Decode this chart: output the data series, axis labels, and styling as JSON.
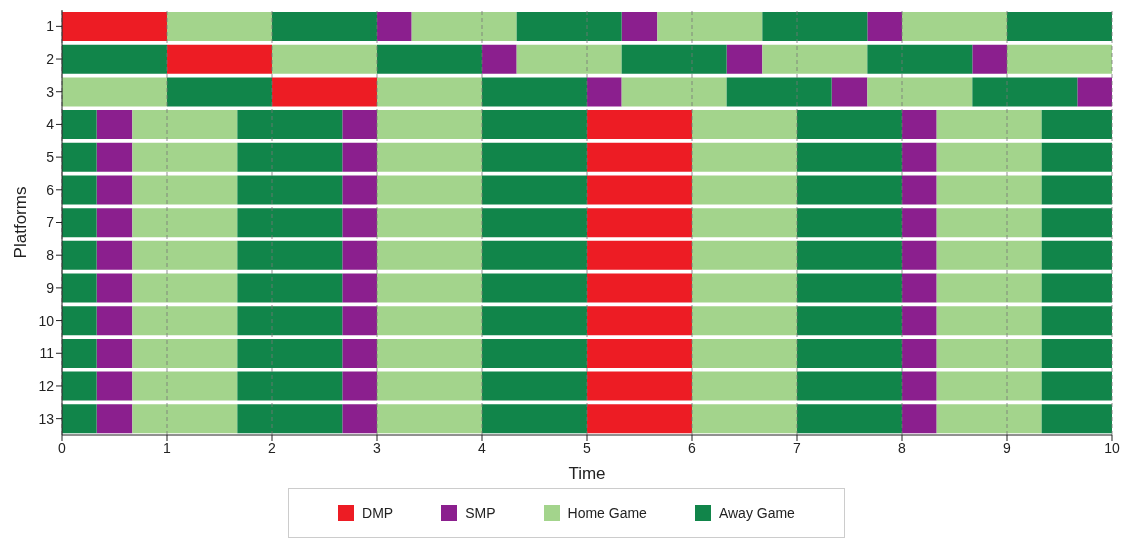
{
  "chart_data": {
    "type": "bar",
    "orientation": "horizontal",
    "xlabel": "Time",
    "ylabel": "Platforms",
    "categories": [
      "1",
      "2",
      "3",
      "4",
      "5",
      "6",
      "7",
      "8",
      "9",
      "10",
      "11",
      "12",
      "13"
    ],
    "xlim": [
      0,
      10
    ],
    "xticks": [
      0,
      1,
      2,
      3,
      4,
      5,
      6,
      7,
      8,
      9,
      10
    ],
    "grid": "x",
    "legend": "bottom",
    "series": [
      {
        "name": "DMP",
        "color": "#ed1c24",
        "base": [
          0,
          1,
          2,
          5,
          5,
          5,
          5,
          5,
          5,
          5,
          5,
          5,
          5
        ],
        "values": [
          1,
          1,
          1,
          1,
          1,
          1,
          1,
          1,
          1,
          1,
          1,
          1,
          1
        ]
      },
      {
        "name": "SMP",
        "color": "#8b1f8e",
        "base": [
          3,
          4,
          5,
          0.33,
          0.33,
          0.33,
          0.33,
          0.33,
          0.33,
          0.33,
          0.33,
          0.33,
          0.33
        ],
        "values": [
          0.33,
          0.33,
          0.33,
          0.34,
          0.34,
          0.34,
          0.34,
          0.34,
          0.34,
          0.34,
          0.34,
          0.34,
          0.34
        ]
      },
      {
        "color": "#8b1f8e",
        "base": [
          5.33,
          6.33,
          7.33,
          2.67,
          2.67,
          2.67,
          2.67,
          2.67,
          2.67,
          2.67,
          2.67,
          2.67,
          2.67
        ],
        "values": [
          0.34,
          0.34,
          0.34,
          0.33,
          0.33,
          0.33,
          0.33,
          0.33,
          0.33,
          0.33,
          0.33,
          0.33,
          0.33
        ]
      },
      {
        "color": "#8b1f8e",
        "base": [
          7.67,
          8.67,
          9.67,
          8,
          8,
          8,
          8,
          8,
          8,
          8,
          8,
          8,
          8
        ],
        "values": [
          0.33,
          0.33,
          0.33,
          0.33,
          0.33,
          0.33,
          0.33,
          0.33,
          0.33,
          0.33,
          0.33,
          0.33,
          0.33
        ]
      },
      {
        "name": "Home Game",
        "color": "#a3d48c",
        "base": [
          1,
          2,
          0,
          0.67,
          0.67,
          0.67,
          0.67,
          0.67,
          0.67,
          0.67,
          0.67,
          0.67,
          0.67
        ],
        "values": [
          1,
          1,
          1,
          1,
          1,
          1,
          1,
          1,
          1,
          1,
          1,
          1,
          1
        ]
      },
      {
        "color": "#a3d48c",
        "base": [
          3.33,
          4.33,
          3,
          3,
          3,
          3,
          3,
          3,
          3,
          3,
          3,
          3,
          3
        ],
        "values": [
          1,
          1,
          1,
          1,
          1,
          1,
          1,
          1,
          1,
          1,
          1,
          1,
          1
        ]
      },
      {
        "color": "#a3d48c",
        "base": [
          5.67,
          6.67,
          5.33,
          6,
          6,
          6,
          6,
          6,
          6,
          6,
          6,
          6,
          6
        ],
        "values": [
          1,
          1,
          1,
          1,
          1,
          1,
          1,
          1,
          1,
          1,
          1,
          1,
          1
        ]
      },
      {
        "color": "#a3d48c",
        "base": [
          8,
          9,
          7.67,
          8.33,
          8.33,
          8.33,
          8.33,
          8.33,
          8.33,
          8.33,
          8.33,
          8.33,
          8.33
        ],
        "values": [
          1,
          1,
          1,
          1,
          1,
          1,
          1,
          1,
          1,
          1,
          1,
          1,
          1
        ]
      },
      {
        "name": "Away Game",
        "color": "#11854a",
        "base": [
          2,
          0,
          1,
          0,
          0,
          0,
          0,
          0,
          0,
          0,
          0,
          0,
          0
        ],
        "values": [
          1,
          1,
          1,
          0.33,
          0.33,
          0.33,
          0.33,
          0.33,
          0.33,
          0.33,
          0.33,
          0.33,
          0.33
        ]
      },
      {
        "color": "#11854a",
        "base": [
          4.33,
          3,
          4,
          1.67,
          1.67,
          1.67,
          1.67,
          1.67,
          1.67,
          1.67,
          1.67,
          1.67,
          1.67
        ],
        "values": [
          1,
          1,
          1,
          1,
          1,
          1,
          1,
          1,
          1,
          1,
          1,
          1,
          1
        ]
      },
      {
        "color": "#11854a",
        "base": [
          6.67,
          5.33,
          6.33,
          4,
          4,
          4,
          4,
          4,
          4,
          4,
          4,
          4,
          4
        ],
        "values": [
          1,
          1,
          1,
          1,
          1,
          1,
          1,
          1,
          1,
          1,
          1,
          1,
          1
        ]
      },
      {
        "color": "#11854a",
        "base": [
          9,
          7.67,
          8.67,
          7,
          7,
          7,
          7,
          7,
          7,
          7,
          7,
          7,
          7
        ],
        "values": [
          1,
          1,
          1,
          1,
          1,
          1,
          1,
          1,
          1,
          1,
          1,
          1,
          1
        ]
      },
      {
        "color": "#11854a",
        "base": [
          null,
          null,
          null,
          9.33,
          9.33,
          9.33,
          9.33,
          9.33,
          9.33,
          9.33,
          9.33,
          9.33,
          9.33
        ],
        "values": [
          null,
          null,
          null,
          0.67,
          0.67,
          0.67,
          0.67,
          0.67,
          0.67,
          0.67,
          0.67,
          0.67,
          0.67
        ]
      }
    ]
  }
}
